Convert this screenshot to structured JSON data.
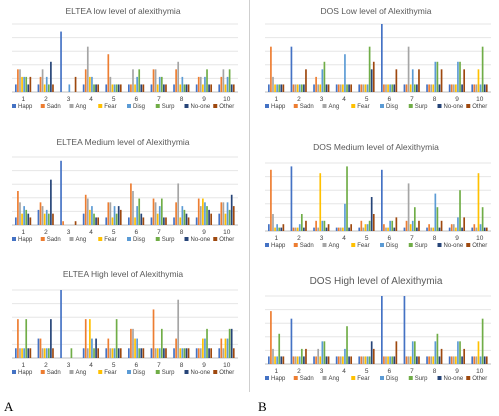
{
  "colors": {
    "Happ": "#4472c4",
    "Sadn": "#ed7d31",
    "Ang": "#a5a5a5",
    "Fear": "#ffc000",
    "Disg": "#5b9bd5",
    "Surp": "#70ad47",
    "No-one": "#264478",
    "Other": "#9e480e"
  },
  "panel_labels": {
    "left": "A",
    "right": "B"
  },
  "chart_data": [
    {
      "type": "bar",
      "title": "ELTEA low level of alexithymia",
      "categories": [
        "1",
        "2",
        "3",
        "4",
        "5",
        "6",
        "7",
        "8",
        "9",
        "10"
      ],
      "legend": [
        "Happ",
        "Sadn",
        "Ang",
        "Fear",
        "Disg",
        "Surp",
        "No-one",
        "Other"
      ],
      "ylim": [
        0,
        9
      ],
      "series": [
        {
          "name": "Happ",
          "values": [
            1,
            1,
            8,
            1,
            1,
            1,
            1,
            1,
            1,
            1
          ]
        },
        {
          "name": "Sadn",
          "values": [
            3,
            2,
            0,
            3,
            5,
            1,
            3,
            3,
            2,
            2
          ]
        },
        {
          "name": "Ang",
          "values": [
            3,
            3,
            0,
            6,
            2,
            3,
            3,
            4,
            2,
            3
          ]
        },
        {
          "name": "Fear",
          "values": [
            2,
            1,
            0,
            2,
            1,
            1,
            1,
            1,
            1,
            1
          ]
        },
        {
          "name": "Disg",
          "values": [
            2,
            2,
            1,
            2,
            1,
            2,
            2,
            2,
            2,
            2
          ]
        },
        {
          "name": "Surp",
          "values": [
            2,
            1,
            0,
            1,
            1,
            3,
            2,
            1,
            3,
            3
          ]
        },
        {
          "name": "No-one",
          "values": [
            1,
            4,
            0,
            1,
            1,
            1,
            1,
            1,
            1,
            1
          ]
        },
        {
          "name": "Other",
          "values": [
            2,
            1,
            2,
            1,
            1,
            1,
            1,
            1,
            1,
            1
          ]
        }
      ]
    },
    {
      "type": "bar",
      "title": "ELTEA Medium level of Alexithymia",
      "categories": [
        "1",
        "2",
        "3",
        "4",
        "5",
        "6",
        "7",
        "8",
        "9",
        "10"
      ],
      "legend": [
        "Happ",
        "Sadn",
        "Ang",
        "Fear",
        "Disg",
        "Surp",
        "No-one",
        "Other"
      ],
      "ylim": [
        0,
        18
      ],
      "series": [
        {
          "name": "Happ",
          "values": [
            2,
            4,
            17,
            3,
            2,
            2,
            2,
            2,
            2,
            3
          ]
        },
        {
          "name": "Sadn",
          "values": [
            9,
            6,
            1,
            8,
            6,
            11,
            7,
            6,
            7,
            6
          ]
        },
        {
          "name": "Ang",
          "values": [
            6,
            5,
            0,
            7,
            6,
            9,
            6,
            11,
            5,
            6
          ]
        },
        {
          "name": "Fear",
          "values": [
            3,
            3,
            0,
            4,
            2,
            2,
            3,
            2,
            7,
            3
          ]
        },
        {
          "name": "Disg",
          "values": [
            5,
            4,
            0,
            5,
            5,
            5,
            5,
            5,
            6,
            6
          ]
        },
        {
          "name": "Surp",
          "values": [
            4,
            3,
            0,
            3,
            3,
            7,
            7,
            4,
            5,
            4
          ]
        },
        {
          "name": "No-one",
          "values": [
            3,
            12,
            0,
            2,
            5,
            3,
            2,
            3,
            4,
            8
          ]
        },
        {
          "name": "Other",
          "values": [
            2,
            3,
            1,
            2,
            4,
            2,
            2,
            2,
            3,
            5
          ]
        }
      ]
    },
    {
      "type": "bar",
      "title": "ELTEA High level of Alexithymia",
      "categories": [
        "1",
        "2",
        "3",
        "4",
        "5",
        "6",
        "7",
        "8",
        "9",
        "10"
      ],
      "legend": [
        "Happ",
        "Sadn",
        "Ang",
        "Fear",
        "Disg",
        "Surp",
        "No-one",
        "Other"
      ],
      "ylim": [
        0,
        7
      ],
      "series": [
        {
          "name": "Happ",
          "values": [
            1,
            2,
            7,
            1,
            1,
            1,
            1,
            1,
            1,
            1
          ]
        },
        {
          "name": "Sadn",
          "values": [
            4,
            2,
            0,
            4,
            2,
            3,
            5,
            2,
            1,
            2
          ]
        },
        {
          "name": "Ang",
          "values": [
            1,
            1,
            0,
            1,
            1,
            3,
            1,
            6,
            1,
            1
          ]
        },
        {
          "name": "Fear",
          "values": [
            1,
            1,
            0,
            4,
            1,
            2,
            1,
            1,
            2,
            2
          ]
        },
        {
          "name": "Disg",
          "values": [
            1,
            1,
            0,
            2,
            1,
            2,
            1,
            1,
            2,
            2
          ]
        },
        {
          "name": "Surp",
          "values": [
            4,
            1,
            1,
            1,
            4,
            1,
            3,
            1,
            3,
            3
          ]
        },
        {
          "name": "No-one",
          "values": [
            1,
            4,
            0,
            2,
            1,
            1,
            1,
            1,
            1,
            3
          ]
        },
        {
          "name": "Other",
          "values": [
            1,
            1,
            0,
            1,
            1,
            1,
            1,
            1,
            1,
            1
          ]
        }
      ]
    },
    {
      "type": "bar",
      "title": "DOS Low level of Alexithymia",
      "categories": [
        "1",
        "2",
        "3",
        "4",
        "5",
        "6",
        "7",
        "8",
        "9",
        "10"
      ],
      "legend": [
        "Happ",
        "Sadn",
        "Ang",
        "Fear",
        "Disg",
        "Surp",
        "No-one",
        "Other"
      ],
      "ylim": [
        0,
        9
      ],
      "series": [
        {
          "name": "Happ",
          "values": [
            1,
            6,
            1,
            1,
            1,
            9,
            1,
            1,
            1,
            1
          ]
        },
        {
          "name": "Sadn",
          "values": [
            6,
            1,
            2,
            1,
            1,
            1,
            1,
            1,
            1,
            1
          ]
        },
        {
          "name": "Ang",
          "values": [
            2,
            1,
            1,
            1,
            1,
            1,
            6,
            1,
            1,
            1
          ]
        },
        {
          "name": "Fear",
          "values": [
            1,
            1,
            1,
            1,
            1,
            1,
            1,
            1,
            1,
            3
          ]
        },
        {
          "name": "Disg",
          "values": [
            1,
            1,
            3,
            5,
            1,
            1,
            3,
            4,
            4,
            1
          ]
        },
        {
          "name": "Surp",
          "values": [
            1,
            1,
            4,
            1,
            6,
            1,
            1,
            4,
            4,
            6
          ]
        },
        {
          "name": "No-one",
          "values": [
            1,
            1,
            1,
            1,
            3,
            1,
            1,
            1,
            1,
            1
          ]
        },
        {
          "name": "Other",
          "values": [
            1,
            3,
            1,
            1,
            4,
            3,
            3,
            3,
            3,
            1
          ]
        }
      ]
    },
    {
      "type": "bar",
      "title": "DOS Medium level of Alexithymia",
      "categories": [
        "1",
        "2",
        "3",
        "4",
        "5",
        "6",
        "7",
        "8",
        "9",
        "10"
      ],
      "legend": [
        "Happ",
        "Sadn",
        "Ang",
        "Fear",
        "Disg",
        "Surp",
        "No-one",
        "Other"
      ],
      "ylim": [
        0,
        20
      ],
      "series": [
        {
          "name": "Happ",
          "values": [
            2,
            19,
            1,
            1,
            1,
            18,
            1,
            1,
            1,
            1
          ]
        },
        {
          "name": "Sadn",
          "values": [
            18,
            1,
            3,
            1,
            3,
            2,
            3,
            2,
            2,
            2
          ]
        },
        {
          "name": "Ang",
          "values": [
            5,
            1,
            1,
            1,
            1,
            1,
            14,
            1,
            2,
            1
          ]
        },
        {
          "name": "Fear",
          "values": [
            1,
            1,
            17,
            1,
            2,
            1,
            2,
            1,
            1,
            17
          ]
        },
        {
          "name": "Disg",
          "values": [
            2,
            2,
            3,
            8,
            2,
            3,
            3,
            11,
            4,
            2
          ]
        },
        {
          "name": "Surp",
          "values": [
            1,
            5,
            3,
            19,
            3,
            3,
            7,
            7,
            12,
            7
          ]
        },
        {
          "name": "No-one",
          "values": [
            1,
            1,
            1,
            1,
            10,
            1,
            1,
            1,
            1,
            1
          ]
        },
        {
          "name": "Other",
          "values": [
            2,
            3,
            2,
            2,
            5,
            4,
            3,
            3,
            4,
            1
          ]
        }
      ]
    },
    {
      "type": "bar",
      "title": "DOS High level of Alexithymia",
      "categories": [
        "1",
        "2",
        "3",
        "4",
        "5",
        "6",
        "7",
        "8",
        "9",
        "10"
      ],
      "legend": [
        "Happ",
        "Sadn",
        "Ang",
        "Fear",
        "Disg",
        "Surp",
        "No-one",
        "Other"
      ],
      "ylim": [
        0,
        9
      ],
      "series": [
        {
          "name": "Happ",
          "values": [
            1,
            6,
            1,
            1,
            1,
            9,
            9,
            1,
            1,
            1
          ]
        },
        {
          "name": "Sadn",
          "values": [
            7,
            1,
            1,
            1,
            1,
            1,
            1,
            1,
            1,
            1
          ]
        },
        {
          "name": "Ang",
          "values": [
            2,
            1,
            2,
            1,
            1,
            1,
            1,
            1,
            1,
            1
          ]
        },
        {
          "name": "Fear",
          "values": [
            1,
            1,
            1,
            1,
            1,
            1,
            1,
            1,
            1,
            3
          ]
        },
        {
          "name": "Disg",
          "values": [
            1,
            1,
            3,
            2,
            1,
            1,
            3,
            3,
            3,
            1
          ]
        },
        {
          "name": "Surp",
          "values": [
            4,
            2,
            3,
            5,
            1,
            1,
            3,
            4,
            3,
            6
          ]
        },
        {
          "name": "No-one",
          "values": [
            1,
            1,
            1,
            1,
            3,
            1,
            1,
            1,
            1,
            1
          ]
        },
        {
          "name": "Other",
          "values": [
            1,
            2,
            1,
            1,
            2,
            3,
            1,
            2,
            2,
            1
          ]
        }
      ]
    }
  ]
}
